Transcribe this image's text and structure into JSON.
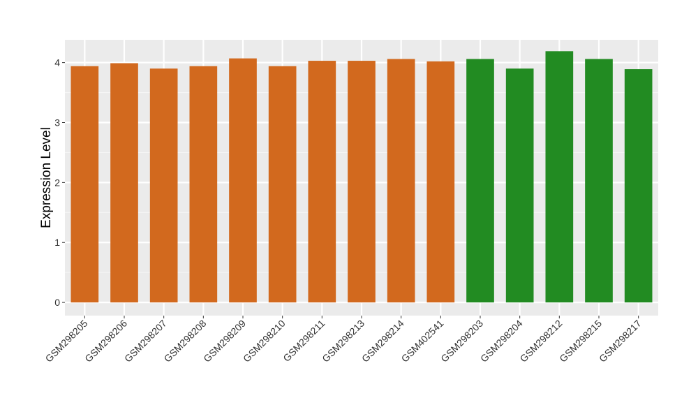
{
  "chart_data": {
    "type": "bar",
    "title": "",
    "xlabel": "",
    "ylabel": "Expression Level",
    "ylim": [
      -0.22,
      4.38
    ],
    "yticks": [
      0,
      1,
      2,
      3,
      4
    ],
    "grid": true,
    "legend": "none",
    "categories": [
      "GSM298205",
      "GSM298206",
      "GSM298207",
      "GSM298208",
      "GSM298209",
      "GSM298210",
      "GSM298211",
      "GSM298213",
      "GSM298214",
      "GSM402541",
      "GSM298203",
      "GSM298204",
      "GSM298212",
      "GSM298215",
      "GSM298217"
    ],
    "values": [
      3.94,
      3.99,
      3.9,
      3.94,
      4.07,
      3.94,
      4.03,
      4.03,
      4.06,
      4.02,
      4.06,
      3.9,
      4.19,
      4.06,
      3.89
    ],
    "bar_colors": [
      "#D2691E",
      "#D2691E",
      "#D2691E",
      "#D2691E",
      "#D2691E",
      "#D2691E",
      "#D2691E",
      "#D2691E",
      "#D2691E",
      "#D2691E",
      "#228B22",
      "#228B22",
      "#228B22",
      "#228B22",
      "#228B22"
    ]
  },
  "colors": {
    "panel_background": "#EBEBEB",
    "grid_major": "#FFFFFF",
    "grid_minor": "#F5F5F5",
    "axis_tick": "#333333"
  }
}
